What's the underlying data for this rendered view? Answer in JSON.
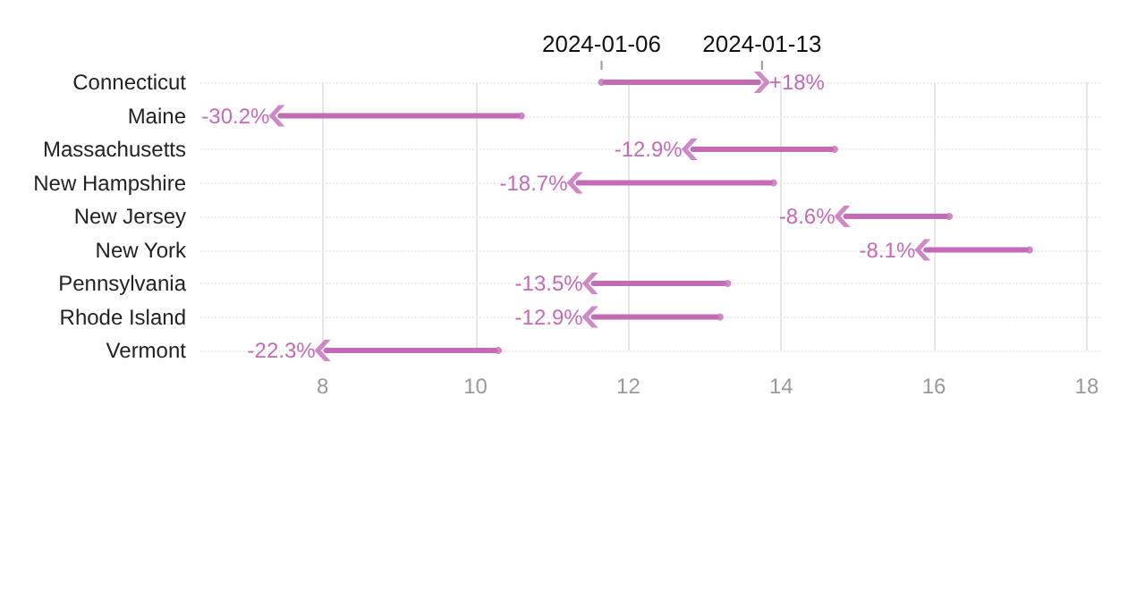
{
  "chart_data": {
    "type": "scatter",
    "orientation": "horizontal",
    "categories": [
      "Connecticut",
      "Maine",
      "Massachusetts",
      "New Hampshire",
      "New Jersey",
      "New York",
      "Pennsylvania",
      "Rhode Island",
      "Vermont"
    ],
    "series": [
      {
        "name": "2024-01-06",
        "color": "#c46bb8",
        "values": [
          11.65,
          10.6,
          14.7,
          13.9,
          16.2,
          17.25,
          13.3,
          13.2,
          10.3
        ]
      },
      {
        "name": "2024-01-13",
        "color": "#c46bb8",
        "values": [
          13.75,
          7.4,
          12.8,
          11.3,
          14.8,
          15.85,
          11.5,
          11.5,
          8.0
        ]
      }
    ],
    "xlim": [
      6.4,
      18.2
    ],
    "xticks": [
      8,
      10,
      12,
      14,
      16,
      18
    ],
    "grid": true,
    "annotations": [
      {
        "text": "+18%",
        "x": 13.75,
        "y": "Connecticut"
      },
      {
        "text": "-30.2%",
        "x": 7.4,
        "y": "Maine"
      },
      {
        "text": "-12.9%",
        "x": 12.8,
        "y": "Massachusetts"
      },
      {
        "text": "-18.7%",
        "x": 11.3,
        "y": "New Hampshire"
      },
      {
        "text": "-8.6%",
        "x": 14.8,
        "y": "New Jersey"
      },
      {
        "text": "-8.1%",
        "x": 15.85,
        "y": "New York"
      },
      {
        "text": "-13.5%",
        "x": 11.5,
        "y": "Pennsylvania"
      },
      {
        "text": "-12.9%",
        "x": 11.5,
        "y": "Rhode Island"
      },
      {
        "text": "-22.3%",
        "x": 8.0,
        "y": "Vermont"
      }
    ]
  }
}
